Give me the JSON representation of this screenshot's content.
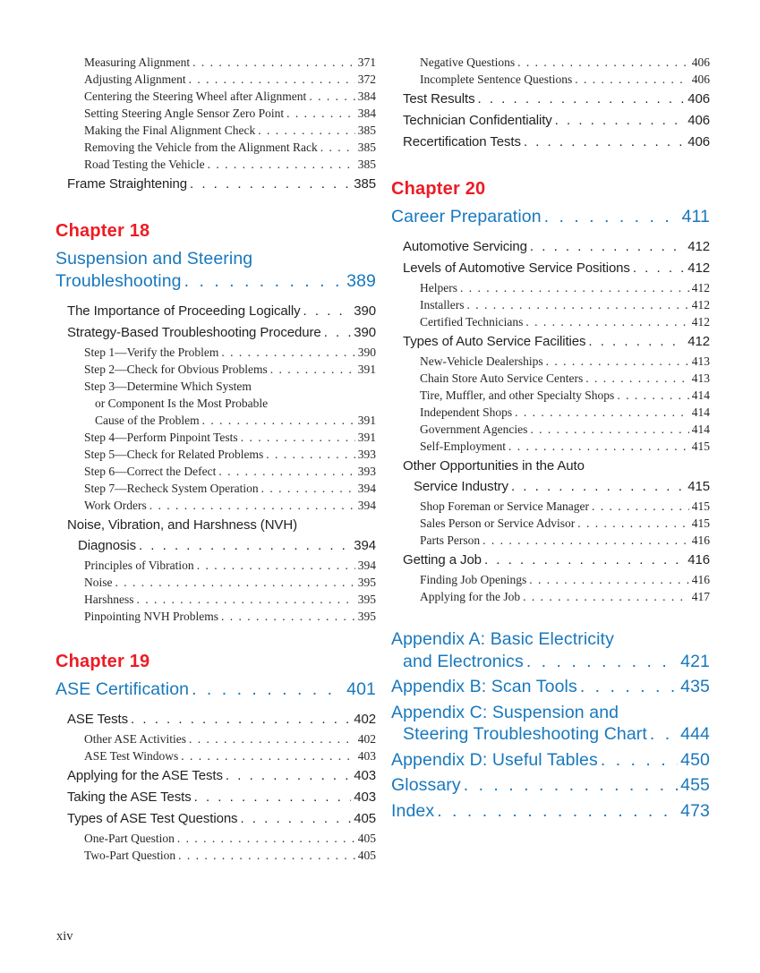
{
  "page": {
    "footer_page_number": "xiv"
  },
  "colors": {
    "chapter_red": "#ed1c24",
    "heading_blue": "#1878bd",
    "body_text": "#231f20",
    "background": "#ffffff"
  },
  "columns": [
    {
      "name": "left",
      "blocks": [
        {
          "type": "entries",
          "items": [
            {
              "level": 2,
              "lines": [
                "Measuring Alignment"
              ],
              "page": "371"
            },
            {
              "level": 2,
              "lines": [
                "Adjusting Alignment"
              ],
              "page": "372"
            },
            {
              "level": 2,
              "lines": [
                "Centering the Steering Wheel after Alignment"
              ],
              "page": "384"
            },
            {
              "level": 2,
              "lines": [
                "Setting Steering Angle Sensor Zero Point"
              ],
              "page": "384"
            },
            {
              "level": 2,
              "lines": [
                "Making the Final Alignment Check"
              ],
              "page": "385"
            },
            {
              "level": 2,
              "lines": [
                "Removing the Vehicle from the Alignment Rack"
              ],
              "page": "385"
            },
            {
              "level": 2,
              "lines": [
                "Road Testing the Vehicle"
              ],
              "page": "385"
            },
            {
              "level": 1,
              "lines": [
                "Frame Straightening"
              ],
              "page": "385"
            }
          ]
        },
        {
          "type": "chapter",
          "label": "Chapter 18"
        },
        {
          "type": "chapter-title",
          "lines": [
            "Suspension and Steering",
            "Troubleshooting"
          ],
          "page": "389"
        },
        {
          "type": "entries",
          "items": [
            {
              "level": 1,
              "lines": [
                "The Importance of Proceeding Logically"
              ],
              "page": "390"
            },
            {
              "level": 1,
              "lines": [
                "Strategy-Based Troubleshooting Procedure"
              ],
              "page": "390"
            },
            {
              "level": 2,
              "lines": [
                "Step 1—Verify the Problem"
              ],
              "page": "390"
            },
            {
              "level": 2,
              "lines": [
                "Step 2—Check for Obvious Problems"
              ],
              "page": "391"
            },
            {
              "level": 2,
              "lines": [
                "Step 3—Determine Which System",
                "or Component Is the Most Probable",
                "Cause of the Problem"
              ],
              "page": "391"
            },
            {
              "level": 2,
              "lines": [
                "Step 4—Perform Pinpoint Tests"
              ],
              "page": "391"
            },
            {
              "level": 2,
              "lines": [
                "Step 5—Check for Related Problems"
              ],
              "page": "393"
            },
            {
              "level": 2,
              "lines": [
                "Step 6—Correct the Defect"
              ],
              "page": "393"
            },
            {
              "level": 2,
              "lines": [
                "Step 7—Recheck System Operation"
              ],
              "page": "394"
            },
            {
              "level": 2,
              "lines": [
                "Work Orders"
              ],
              "page": "394"
            },
            {
              "level": 1,
              "lines": [
                "Noise, Vibration, and Harshness (NVH)",
                "Diagnosis"
              ],
              "page": "394"
            },
            {
              "level": 2,
              "lines": [
                "Principles of Vibration"
              ],
              "page": "394"
            },
            {
              "level": 2,
              "lines": [
                "Noise"
              ],
              "page": "395"
            },
            {
              "level": 2,
              "lines": [
                "Harshness"
              ],
              "page": "395"
            },
            {
              "level": 2,
              "lines": [
                "Pinpointing NVH Problems"
              ],
              "page": "395"
            }
          ]
        },
        {
          "type": "chapter",
          "label": "Chapter 19"
        },
        {
          "type": "chapter-title",
          "lines": [
            "ASE Certification"
          ],
          "page": "401"
        },
        {
          "type": "entries",
          "items": [
            {
              "level": 1,
              "lines": [
                "ASE Tests"
              ],
              "page": "402"
            },
            {
              "level": 2,
              "lines": [
                "Other ASE Activities"
              ],
              "page": "402"
            },
            {
              "level": 2,
              "lines": [
                "ASE Test Windows"
              ],
              "page": "403"
            },
            {
              "level": 1,
              "lines": [
                "Applying for the ASE Tests"
              ],
              "page": "403"
            },
            {
              "level": 1,
              "lines": [
                "Taking the ASE Tests"
              ],
              "page": "403"
            },
            {
              "level": 1,
              "lines": [
                "Types of ASE Test Questions"
              ],
              "page": "405"
            },
            {
              "level": 2,
              "lines": [
                "One-Part Question"
              ],
              "page": "405"
            },
            {
              "level": 2,
              "lines": [
                "Two-Part Question"
              ],
              "page": "405"
            }
          ]
        }
      ]
    },
    {
      "name": "right",
      "blocks": [
        {
          "type": "entries",
          "items": [
            {
              "level": 2,
              "lines": [
                "Negative Questions"
              ],
              "page": "406"
            },
            {
              "level": 2,
              "lines": [
                "Incomplete Sentence Questions"
              ],
              "page": "406"
            },
            {
              "level": 1,
              "lines": [
                "Test Results"
              ],
              "page": "406"
            },
            {
              "level": 1,
              "lines": [
                "Technician Confidentiality"
              ],
              "page": "406"
            },
            {
              "level": 1,
              "lines": [
                "Recertification Tests"
              ],
              "page": "406"
            }
          ]
        },
        {
          "type": "chapter",
          "label": "Chapter 20"
        },
        {
          "type": "chapter-title",
          "lines": [
            "Career Preparation"
          ],
          "page": "411"
        },
        {
          "type": "entries",
          "items": [
            {
              "level": 1,
              "lines": [
                "Automotive Servicing"
              ],
              "page": "412"
            },
            {
              "level": 1,
              "lines": [
                "Levels of Automotive Service Positions"
              ],
              "page": "412"
            },
            {
              "level": 2,
              "lines": [
                "Helpers"
              ],
              "page": "412"
            },
            {
              "level": 2,
              "lines": [
                "Installers"
              ],
              "page": "412"
            },
            {
              "level": 2,
              "lines": [
                "Certified Technicians"
              ],
              "page": "412"
            },
            {
              "level": 1,
              "lines": [
                "Types of Auto Service Facilities"
              ],
              "page": "412"
            },
            {
              "level": 2,
              "lines": [
                "New-Vehicle Dealerships"
              ],
              "page": "413"
            },
            {
              "level": 2,
              "lines": [
                "Chain Store Auto Service Centers"
              ],
              "page": "413"
            },
            {
              "level": 2,
              "lines": [
                "Tire, Muffler, and other Specialty Shops"
              ],
              "page": "414"
            },
            {
              "level": 2,
              "lines": [
                "Independent Shops"
              ],
              "page": "414"
            },
            {
              "level": 2,
              "lines": [
                "Government Agencies"
              ],
              "page": "414"
            },
            {
              "level": 2,
              "lines": [
                "Self-Employment"
              ],
              "page": "415"
            },
            {
              "level": 1,
              "lines": [
                "Other Opportunities in the Auto",
                "Service Industry"
              ],
              "page": "415"
            },
            {
              "level": 2,
              "lines": [
                "Shop Foreman or Service Manager"
              ],
              "page": "415"
            },
            {
              "level": 2,
              "lines": [
                "Sales Person or Service Advisor"
              ],
              "page": "415"
            },
            {
              "level": 2,
              "lines": [
                "Parts Person"
              ],
              "page": "416"
            },
            {
              "level": 1,
              "lines": [
                "Getting a Job"
              ],
              "page": "416"
            },
            {
              "level": 2,
              "lines": [
                "Finding Job Openings"
              ],
              "page": "416"
            },
            {
              "level": 2,
              "lines": [
                "Applying for the Job"
              ],
              "page": "417"
            }
          ]
        },
        {
          "type": "backmatter",
          "items": [
            {
              "lines": [
                "Appendix A: Basic Electricity",
                "and Electronics"
              ],
              "page": "421"
            },
            {
              "lines": [
                "Appendix B: Scan Tools"
              ],
              "page": "435"
            },
            {
              "lines": [
                "Appendix C: Suspension and",
                "Steering Troubleshooting Chart"
              ],
              "page": "444"
            },
            {
              "lines": [
                "Appendix D: Useful Tables"
              ],
              "page": "450"
            },
            {
              "lines": [
                "Glossary"
              ],
              "page": "455"
            },
            {
              "lines": [
                "Index"
              ],
              "page": "473"
            }
          ]
        }
      ]
    }
  ]
}
